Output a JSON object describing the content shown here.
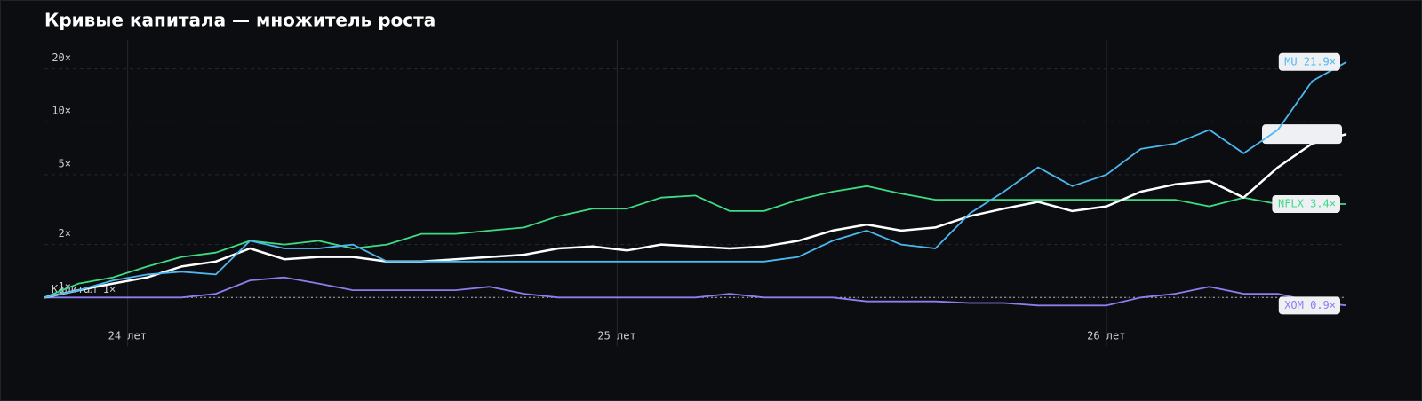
{
  "chart_data": {
    "type": "line",
    "title": "Кривые капитала — множитель роста",
    "log_scale": true,
    "grid": true,
    "x": [
      23.83,
      23.9,
      23.97,
      24.04,
      24.11,
      24.18,
      24.25,
      24.32,
      24.39,
      24.46,
      24.53,
      24.6,
      24.67,
      24.74,
      24.81,
      24.88,
      24.95,
      25.02,
      25.09,
      25.16,
      25.23,
      25.3,
      25.37,
      25.44,
      25.51,
      25.58,
      25.65,
      25.72,
      25.79,
      25.86,
      25.93,
      26.0,
      26.07,
      26.14,
      26.21,
      26.28,
      26.35,
      26.42,
      26.49
    ],
    "xlim": [
      23.83,
      26.49
    ],
    "xticks": [
      {
        "value": 24,
        "label": "24 лет"
      },
      {
        "value": 25,
        "label": "25 лет"
      },
      {
        "value": 26,
        "label": "26 лет"
      }
    ],
    "ylim": [
      0.75,
      26
    ],
    "yticks": [
      {
        "value": 1,
        "label": "1×"
      },
      {
        "value": 2,
        "label": "2×"
      },
      {
        "value": 5,
        "label": "5×"
      },
      {
        "value": 10,
        "label": "10×"
      },
      {
        "value": 20,
        "label": "20×"
      }
    ],
    "baseline": {
      "value": 1,
      "label": "Капитал 1×"
    },
    "series": [
      {
        "name": "NFLX",
        "end_label": "NFLX 3.4×",
        "color": "#3ddc84",
        "values": [
          1.0,
          1.2,
          1.3,
          1.5,
          1.7,
          1.8,
          2.1,
          2.0,
          2.1,
          1.9,
          2.0,
          2.3,
          2.3,
          2.4,
          2.5,
          2.9,
          3.2,
          3.2,
          3.7,
          3.8,
          3.1,
          3.1,
          3.6,
          4.0,
          4.3,
          3.9,
          3.6,
          3.6,
          3.6,
          3.6,
          3.6,
          3.6,
          3.6,
          3.6,
          3.3,
          3.7,
          3.4,
          3.4,
          3.4
        ]
      },
      {
        "name": "XOM",
        "end_label": "XOM 0.9×",
        "color": "#8b7ff0",
        "values": [
          1.0,
          1.0,
          1.0,
          1.0,
          1.0,
          1.05,
          1.25,
          1.3,
          1.2,
          1.1,
          1.1,
          1.1,
          1.1,
          1.15,
          1.05,
          1.0,
          1.0,
          1.0,
          1.0,
          1.0,
          1.05,
          1.0,
          1.0,
          1.0,
          0.95,
          0.95,
          0.95,
          0.93,
          0.93,
          0.9,
          0.9,
          0.9,
          1.0,
          1.05,
          1.15,
          1.05,
          1.05,
          0.95,
          0.9
        ]
      },
      {
        "color": "#ffffff",
        "values": [
          1.0,
          1.1,
          1.2,
          1.3,
          1.5,
          1.6,
          1.9,
          1.65,
          1.7,
          1.7,
          1.6,
          1.6,
          1.65,
          1.7,
          1.75,
          1.9,
          1.95,
          1.85,
          2.0,
          1.95,
          1.9,
          1.95,
          2.1,
          2.4,
          2.6,
          2.4,
          2.5,
          2.9,
          3.2,
          3.5,
          3.1,
          3.3,
          4.0,
          4.4,
          4.6,
          3.7,
          5.5,
          7.5,
          8.5
        ]
      },
      {
        "name": "MU",
        "end_label": "MU 21.9×",
        "color": "#4db8f0",
        "values": [
          1.0,
          1.1,
          1.25,
          1.35,
          1.4,
          1.35,
          2.1,
          1.9,
          1.9,
          2.0,
          1.6,
          1.6,
          1.6,
          1.6,
          1.6,
          1.6,
          1.6,
          1.6,
          1.6,
          1.6,
          1.6,
          1.6,
          1.7,
          2.1,
          2.4,
          2.0,
          1.9,
          3.0,
          4.0,
          5.5,
          4.3,
          5.0,
          7.0,
          7.5,
          9.0,
          6.6,
          9.0,
          17,
          21.9
        ]
      }
    ]
  }
}
